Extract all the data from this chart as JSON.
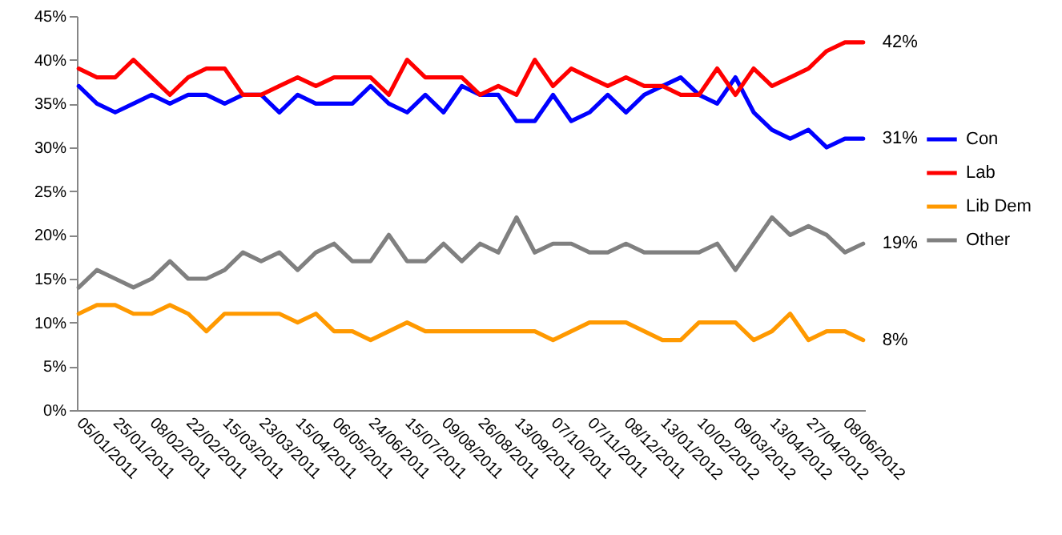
{
  "chart_data": {
    "type": "line",
    "categories": [
      "05/01/2011",
      null,
      "25/01/2011",
      null,
      "08/02/2011",
      null,
      "22/02/2011",
      null,
      "15/03/2011",
      null,
      "23/03/2011",
      null,
      "15/04/2011",
      null,
      "06/05/2011",
      null,
      "24/06/2011",
      null,
      "15/07/2011",
      null,
      "09/08/2011",
      null,
      "26/08/2011",
      null,
      "13/09/2011",
      null,
      "07/10/2011",
      null,
      "07/11/2011",
      null,
      "08/12/2011",
      null,
      "13/01/2012",
      null,
      "10/02/2012",
      null,
      "09/03/2012",
      null,
      "13/04/2012",
      null,
      "27/04/2012",
      null,
      "08/06/2012",
      null
    ],
    "series": [
      {
        "name": "Con",
        "color": "#0000ff",
        "values": [
          37,
          35,
          34,
          35,
          36,
          35,
          36,
          36,
          35,
          36,
          36,
          34,
          36,
          35,
          35,
          35,
          37,
          35,
          34,
          36,
          34,
          37,
          36,
          36,
          33,
          33,
          36,
          33,
          34,
          36,
          34,
          36,
          37,
          38,
          36,
          35,
          38,
          34,
          32,
          31,
          32,
          30,
          31,
          31
        ]
      },
      {
        "name": "Lab",
        "color": "#ff0000",
        "values": [
          39,
          38,
          38,
          40,
          38,
          36,
          38,
          39,
          39,
          36,
          36,
          37,
          38,
          37,
          38,
          38,
          38,
          36,
          40,
          38,
          38,
          38,
          36,
          37,
          36,
          40,
          37,
          39,
          38,
          37,
          38,
          37,
          37,
          36,
          36,
          39,
          36,
          39,
          37,
          38,
          39,
          41,
          42,
          42
        ]
      },
      {
        "name": "Lib Dem",
        "color": "#ff9900",
        "values": [
          11,
          12,
          12,
          11,
          11,
          12,
          11,
          9,
          11,
          11,
          11,
          11,
          10,
          11,
          9,
          9,
          8,
          9,
          10,
          9,
          9,
          9,
          9,
          9,
          9,
          9,
          8,
          9,
          10,
          10,
          10,
          9,
          8,
          8,
          10,
          10,
          10,
          8,
          9,
          11,
          8,
          9,
          9,
          8
        ]
      },
      {
        "name": "Other",
        "color": "#808080",
        "values": [
          14,
          16,
          15,
          14,
          15,
          17,
          15,
          15,
          16,
          18,
          17,
          18,
          16,
          18,
          19,
          17,
          17,
          20,
          17,
          17,
          19,
          17,
          19,
          18,
          22,
          18,
          19,
          19,
          18,
          18,
          19,
          18,
          18,
          18,
          18,
          19,
          16,
          19,
          22,
          20,
          21,
          20,
          18,
          19
        ]
      }
    ],
    "ylim": [
      0,
      45
    ],
    "yticks": [
      {
        "value": 0,
        "label": "0%"
      },
      {
        "value": 5,
        "label": "5%"
      },
      {
        "value": 10,
        "label": "10%"
      },
      {
        "value": 15,
        "label": "15%"
      },
      {
        "value": 20,
        "label": "20%"
      },
      {
        "value": 25,
        "label": "25%"
      },
      {
        "value": 30,
        "label": "30%"
      },
      {
        "value": 35,
        "label": "35%"
      },
      {
        "value": 40,
        "label": "40%"
      },
      {
        "value": 45,
        "label": "45%"
      }
    ],
    "annotations": [
      "31%",
      "42%",
      "8%",
      "19%"
    ],
    "legend": "right",
    "grid": false,
    "marker": "none",
    "line_style": "solid"
  }
}
